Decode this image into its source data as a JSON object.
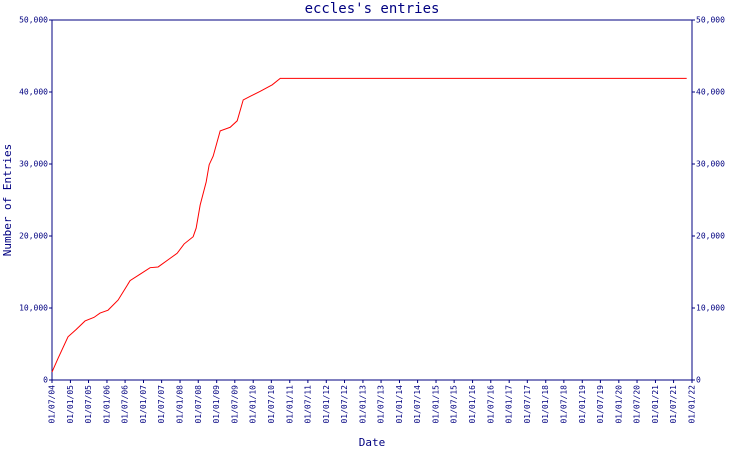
{
  "chart_data": {
    "type": "line",
    "title": "eccles's entries",
    "x_label": "Date",
    "y_label": "Number of Entries",
    "x": [
      "2004-07-01",
      "2004-08-30",
      "2004-12-08",
      "2005-02-26",
      "2005-05-27",
      "2005-08-25",
      "2005-10-24",
      "2006-01-12",
      "2006-04-22",
      "2006-08-20",
      "2006-11-28",
      "2007-03-08",
      "2007-05-27",
      "2007-09-04",
      "2007-12-03",
      "2008-02-11",
      "2008-05-11",
      "2008-06-10",
      "2008-07-20",
      "2008-09-18",
      "2008-10-18",
      "2008-11-27",
      "2009-02-05",
      "2009-05-16",
      "2009-07-25",
      "2009-09-23",
      "2009-12-02",
      "2010-03-12",
      "2010-07-10",
      "2010-09-28",
      "2021-11-09"
    ],
    "series": [
      {
        "name": "entries",
        "color": "#ff0000",
        "values": [
          1100,
          3000,
          6000,
          7000,
          8200,
          8700,
          9300,
          9700,
          11100,
          13800,
          14700,
          15600,
          15700,
          16700,
          17600,
          18900,
          19900,
          21100,
          24300,
          27500,
          29900,
          31100,
          34600,
          35100,
          36000,
          38900,
          39400,
          40100,
          41000,
          41900,
          41900
        ]
      }
    ],
    "xlim": [
      "2004-07-01",
      "2022-01-01"
    ],
    "xticks": [
      {
        "value": "2004-07-01",
        "label": "01/07/04"
      },
      {
        "value": "2005-01-01",
        "label": "01/01/05"
      },
      {
        "value": "2005-07-01",
        "label": "01/07/05"
      },
      {
        "value": "2006-01-01",
        "label": "01/01/06"
      },
      {
        "value": "2006-07-01",
        "label": "01/07/06"
      },
      {
        "value": "2007-01-01",
        "label": "01/01/07"
      },
      {
        "value": "2007-07-01",
        "label": "01/07/07"
      },
      {
        "value": "2008-01-01",
        "label": "01/01/08"
      },
      {
        "value": "2008-07-01",
        "label": "01/07/08"
      },
      {
        "value": "2009-01-01",
        "label": "01/01/09"
      },
      {
        "value": "2009-07-01",
        "label": "01/07/09"
      },
      {
        "value": "2010-01-01",
        "label": "01/01/10"
      },
      {
        "value": "2010-07-01",
        "label": "01/07/10"
      },
      {
        "value": "2011-01-01",
        "label": "01/01/11"
      },
      {
        "value": "2011-07-01",
        "label": "01/07/11"
      },
      {
        "value": "2012-01-01",
        "label": "01/01/12"
      },
      {
        "value": "2012-07-01",
        "label": "01/07/12"
      },
      {
        "value": "2013-01-01",
        "label": "01/01/13"
      },
      {
        "value": "2013-07-01",
        "label": "01/07/13"
      },
      {
        "value": "2014-01-01",
        "label": "01/01/14"
      },
      {
        "value": "2014-07-01",
        "label": "01/07/14"
      },
      {
        "value": "2015-01-01",
        "label": "01/01/15"
      },
      {
        "value": "2015-07-01",
        "label": "01/07/15"
      },
      {
        "value": "2016-01-01",
        "label": "01/01/16"
      },
      {
        "value": "2016-07-01",
        "label": "01/07/16"
      },
      {
        "value": "2017-01-01",
        "label": "01/01/17"
      },
      {
        "value": "2017-07-01",
        "label": "01/07/17"
      },
      {
        "value": "2018-01-01",
        "label": "01/01/18"
      },
      {
        "value": "2018-07-01",
        "label": "01/07/18"
      },
      {
        "value": "2019-01-01",
        "label": "01/01/19"
      },
      {
        "value": "2019-07-01",
        "label": "01/07/19"
      },
      {
        "value": "2020-01-01",
        "label": "01/01/20"
      },
      {
        "value": "2020-07-01",
        "label": "01/07/20"
      },
      {
        "value": "2021-01-01",
        "label": "01/01/21"
      },
      {
        "value": "2021-07-01",
        "label": "01/07/21"
      },
      {
        "value": "2022-01-01",
        "label": "01/01/22"
      }
    ],
    "ylim": [
      0,
      50000
    ],
    "yticks": [
      0,
      {
        "value": 10000,
        "label": "10,000"
      },
      {
        "value": 20000,
        "label": "20,000"
      },
      {
        "value": 30000,
        "label": "30,000"
      },
      {
        "value": 40000,
        "label": "40,000"
      },
      {
        "value": 50000,
        "label": "50,000"
      }
    ],
    "grid": false,
    "axis_color": "#000080"
  }
}
